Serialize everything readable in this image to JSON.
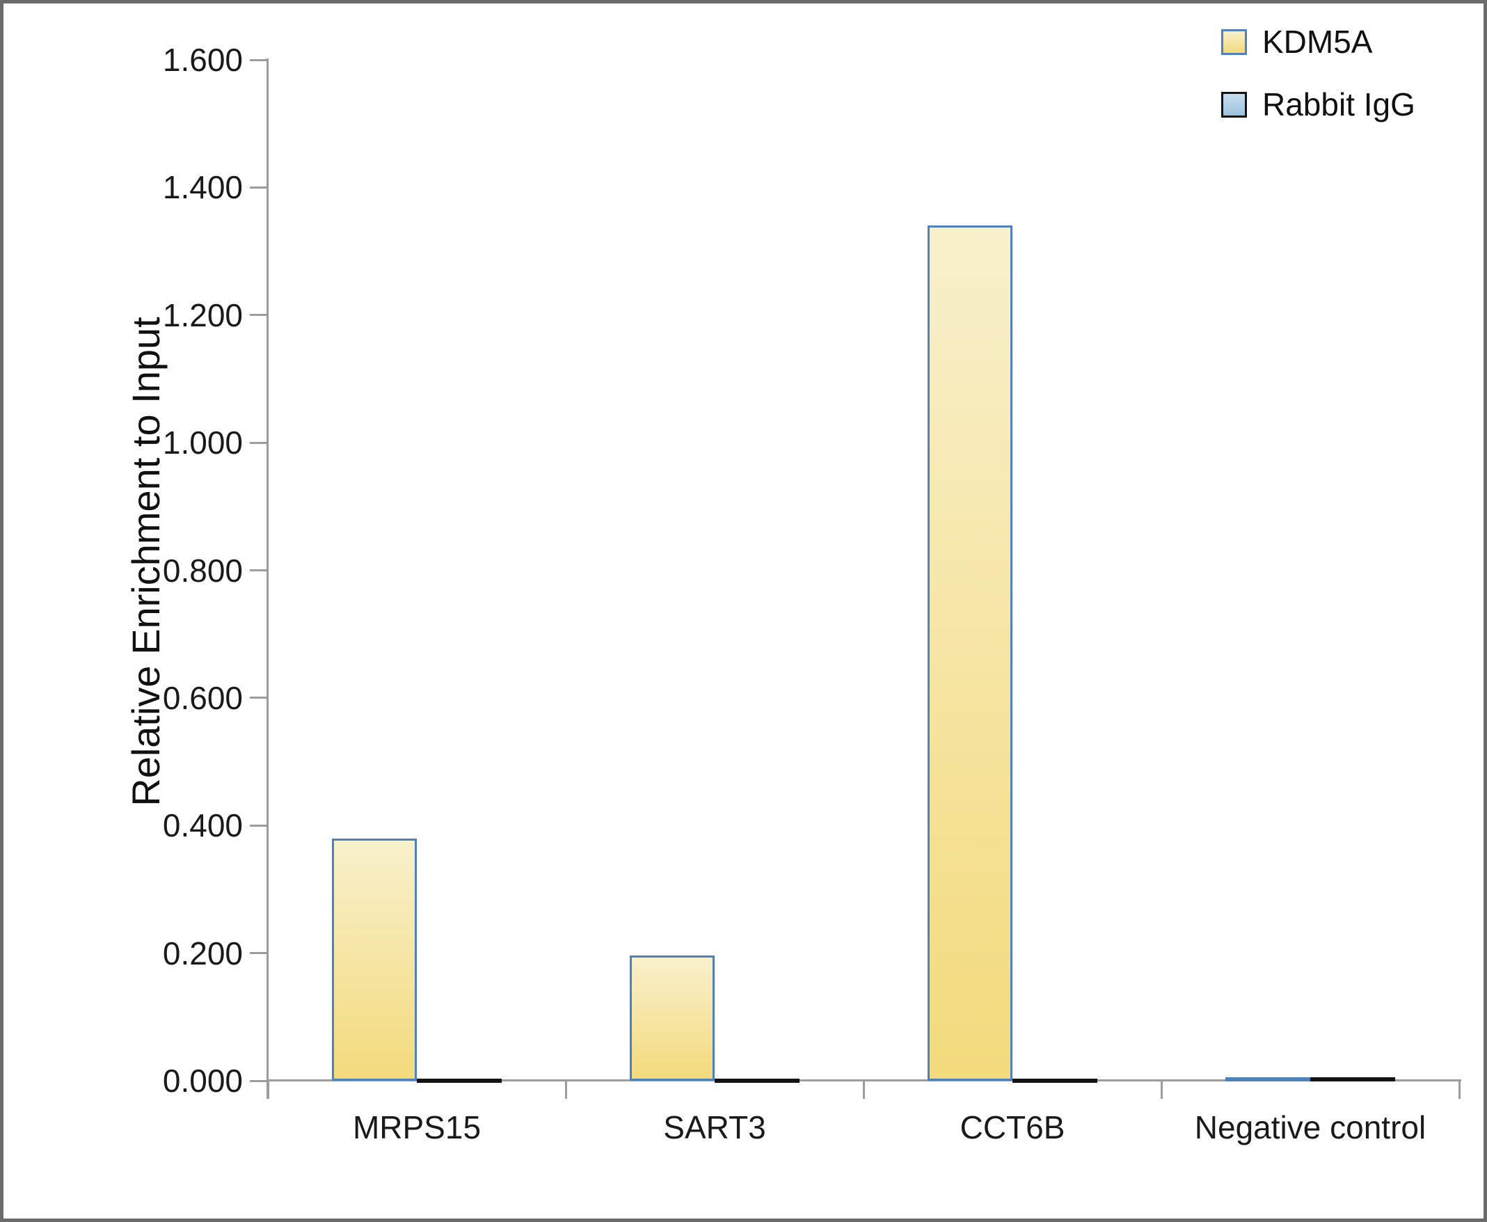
{
  "chart_data": {
    "type": "bar",
    "title": "",
    "ylabel": "Relative Enrichment to Input",
    "xlabel": "",
    "categories": [
      "MRPS15",
      "SART3",
      "CCT6B",
      "Negative control"
    ],
    "series": [
      {
        "name": "KDM5A",
        "values": [
          0.38,
          0.196,
          1.34,
          0.005
        ],
        "fill_top": "#f9f0cc",
        "fill_bottom": "#f3da7c",
        "border_color": "#4f81bd"
      },
      {
        "name": "Rabbit IgG",
        "values": [
          0.003,
          0.003,
          0.003,
          0.005
        ],
        "fill_top": "#c8deee",
        "fill_bottom": "#9cc2dd",
        "border_color": "#131313"
      }
    ],
    "ylim": [
      0.0,
      1.6
    ],
    "ytick_step": 0.2,
    "ytick_labels": [
      "0.000",
      "0.200",
      "0.400",
      "0.600",
      "0.800",
      "1.000",
      "1.200",
      "1.400",
      "1.600"
    ],
    "grid": false,
    "legend_position": "top-right",
    "axis_color": "#9c9c9c",
    "text_color": "#1a1a1a"
  }
}
